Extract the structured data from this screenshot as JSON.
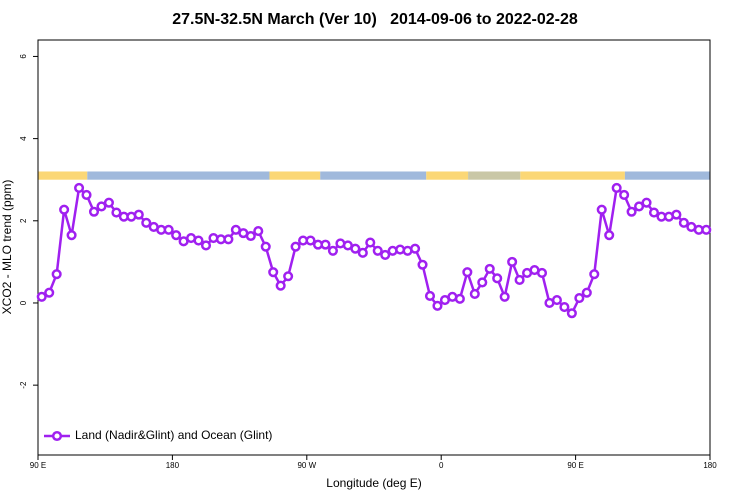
{
  "chart_data": {
    "type": "line",
    "title": "27.5N-32.5N March (Ver 10)   2014-09-06 to 2022-02-28",
    "x_label": "Longitude (deg E)",
    "y_label": "XCO2 - MLO trend (ppm)",
    "xlim": [
      90,
      540
    ],
    "ylim": [
      -3.7,
      6.4
    ],
    "xticks": [
      {
        "value": 90,
        "label": "90 E"
      },
      180,
      {
        "value": 270,
        "label": "90 W"
      },
      {
        "value": 360,
        "label": "0"
      },
      {
        "value": 450,
        "label": "90 E"
      },
      {
        "value": 540,
        "label": "180"
      }
    ],
    "yticks": [
      -2,
      0,
      2,
      4,
      6
    ],
    "legend": "lower left",
    "band": {
      "y": [
        3.0,
        3.2
      ],
      "segments": [
        {
          "x": [
            90,
            123
          ],
          "color": "#fbd776"
        },
        {
          "x": [
            123,
            245
          ],
          "color": "#a0b9dc"
        },
        {
          "x": [
            245,
            279
          ],
          "color": "#fbd776"
        },
        {
          "x": [
            279,
            350
          ],
          "color": "#a0b9dc"
        },
        {
          "x": [
            350,
            378
          ],
          "color": "#fbd776"
        },
        {
          "x": [
            378,
            413
          ],
          "color": "#c9c7a6"
        },
        {
          "x": [
            413,
            483
          ],
          "color": "#fbd776"
        },
        {
          "x": [
            483,
            540
          ],
          "color": "#a0b9dc"
        }
      ]
    },
    "x": [
      92.5,
      97.5,
      102.5,
      107.5,
      112.5,
      117.5,
      122.5,
      127.5,
      132.5,
      137.5,
      142.5,
      147.5,
      152.5,
      157.5,
      162.5,
      167.5,
      172.5,
      177.5,
      182.5,
      187.5,
      192.5,
      197.5,
      202.5,
      207.5,
      212.5,
      217.5,
      222.5,
      227.5,
      232.5,
      237.5,
      242.5,
      247.5,
      252.5,
      257.5,
      262.5,
      267.5,
      272.5,
      277.5,
      282.5,
      287.5,
      292.5,
      297.5,
      302.5,
      307.5,
      312.5,
      317.5,
      322.5,
      327.5,
      332.5,
      337.5,
      342.5,
      347.5,
      352.5,
      357.5,
      362.5,
      367.5,
      372.5,
      377.5,
      382.5,
      387.5,
      392.5,
      397.5,
      402.5,
      407.5,
      412.5,
      417.5,
      422.5,
      427.5,
      432.5,
      437.5,
      442.5,
      447.5,
      452.5,
      457.5,
      462.5,
      467.5,
      472.5,
      477.5,
      482.5,
      487.5,
      492.5,
      497.5,
      502.5,
      507.5,
      512.5,
      517.5,
      522.5,
      527.5,
      532.5,
      537.5
    ],
    "series": [
      {
        "name": "Land (Nadir&Glint) and Ocean (Glint)",
        "color": "#a020f0",
        "values": [
          0.15,
          0.25,
          0.7,
          2.27,
          1.65,
          2.8,
          2.63,
          2.22,
          2.35,
          2.44,
          2.2,
          2.1,
          2.1,
          2.15,
          1.95,
          1.85,
          1.78,
          1.78,
          1.65,
          1.5,
          1.58,
          1.52,
          1.4,
          1.58,
          1.55,
          1.55,
          1.78,
          1.7,
          1.63,
          1.75,
          1.37,
          0.75,
          0.42,
          0.65,
          1.37,
          1.52,
          1.52,
          1.42,
          1.42,
          1.27,
          1.45,
          1.4,
          1.32,
          1.22,
          1.47,
          1.27,
          1.17,
          1.27,
          1.3,
          1.27,
          1.32,
          0.93,
          0.17,
          -0.07,
          0.07,
          0.15,
          0.1,
          0.75,
          0.22,
          0.5,
          0.83,
          0.6,
          0.15,
          1.0,
          0.56,
          0.73,
          0.8,
          0.73,
          0,
          0.07,
          -0.1,
          -0.25,
          0.12,
          0.25,
          0.7,
          2.27,
          1.65,
          2.8,
          2.63,
          2.22,
          2.35,
          2.44,
          2.2,
          2.1,
          2.1,
          2.15,
          1.95,
          1.85,
          1.78,
          1.78
        ]
      }
    ]
  }
}
